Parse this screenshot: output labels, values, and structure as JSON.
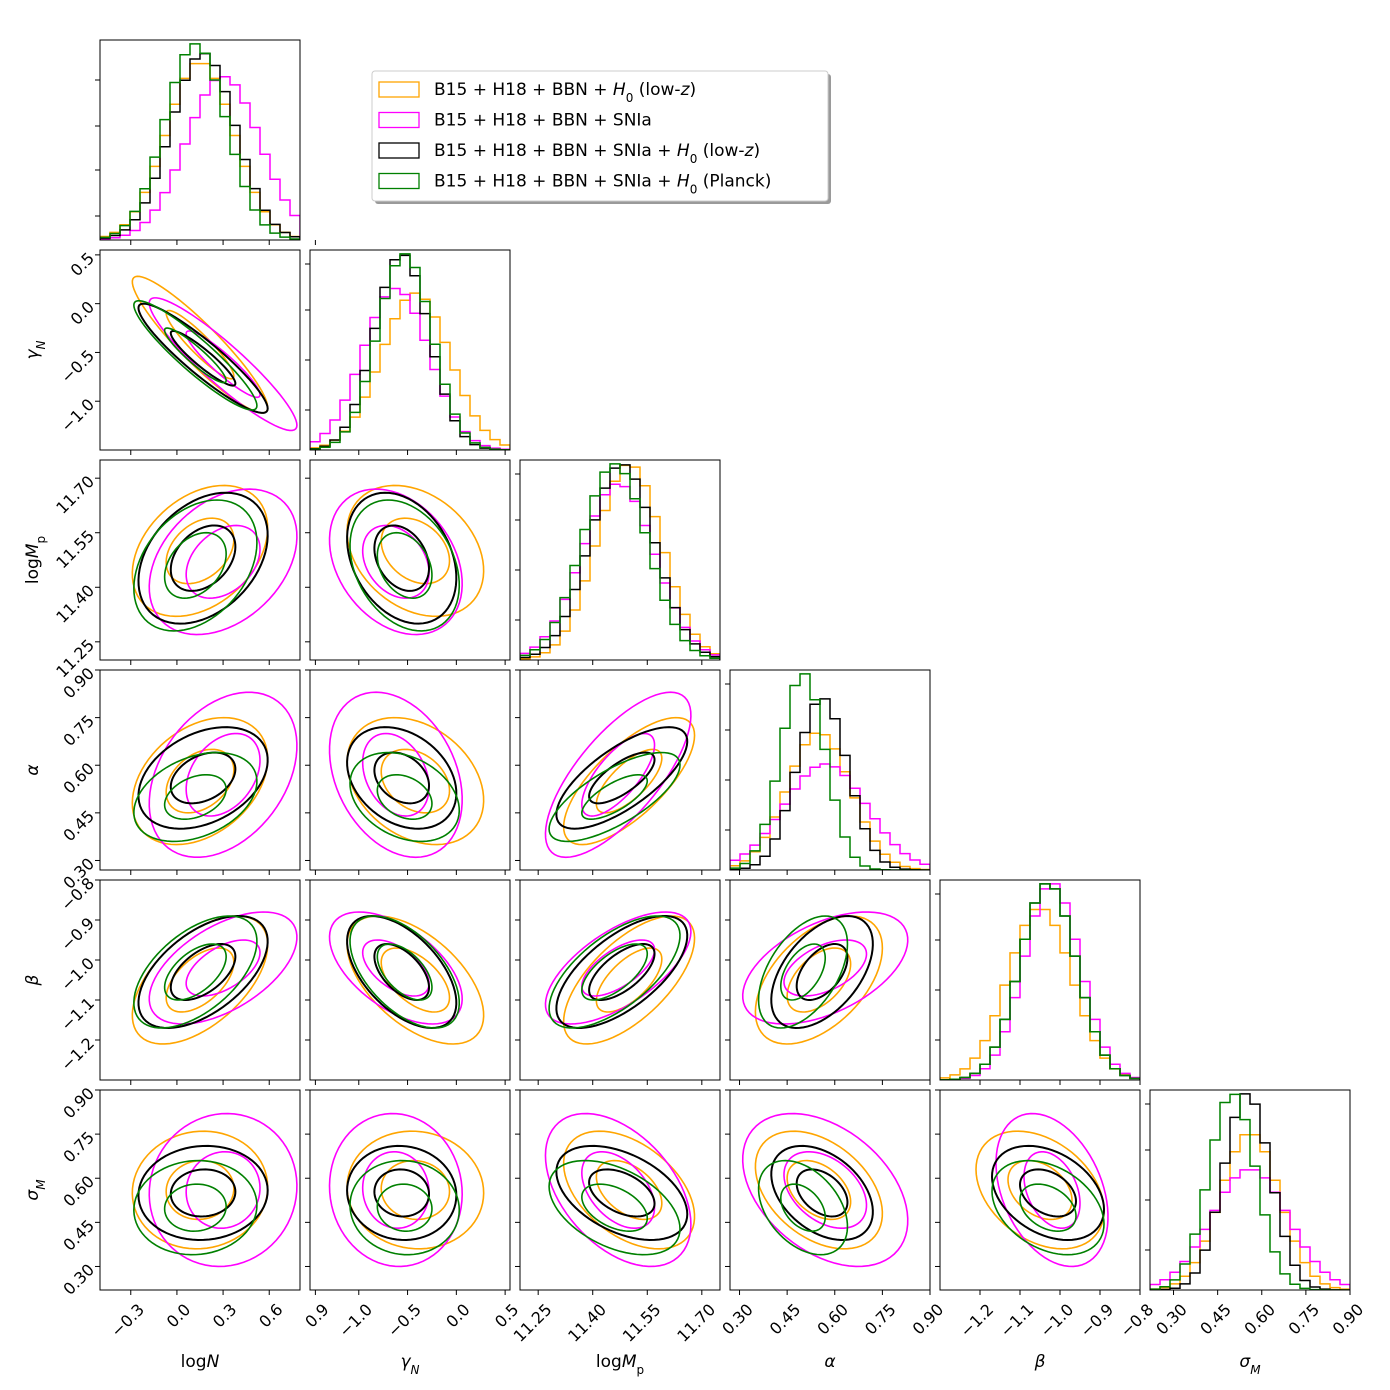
{
  "chart_data": {
    "type": "corner",
    "params": [
      {
        "key": "logN",
        "label_main": "log",
        "label_var": "N",
        "label_sub": "",
        "range": [
          -0.5,
          0.8
        ],
        "ticks": [
          -0.3,
          0.0,
          0.3,
          0.6,
          0.9
        ],
        "tick_labels": [
          "−0.3",
          "0.0",
          "0.3",
          "0.6",
          "0.9"
        ]
      },
      {
        "key": "gammaN",
        "label_main": "",
        "label_var": "γ",
        "label_sub": "N",
        "range": [
          -1.5,
          0.55
        ],
        "ticks": [
          -1.0,
          -0.5,
          0.0,
          0.5
        ],
        "tick_labels": [
          "−1.0",
          "−0.5",
          "0.0",
          "0.5"
        ]
      },
      {
        "key": "logMp",
        "label_main": "log",
        "label_var": "M",
        "label_sub": "p",
        "range": [
          11.2,
          11.75
        ],
        "ticks": [
          11.25,
          11.4,
          11.55,
          11.7
        ],
        "tick_labels": [
          "11.25",
          "11.40",
          "11.55",
          "11.70"
        ]
      },
      {
        "key": "alpha",
        "label_main": "",
        "label_var": "α",
        "label_sub": "",
        "range": [
          0.27,
          0.9
        ],
        "ticks": [
          0.3,
          0.45,
          0.6,
          0.75,
          0.9
        ],
        "tick_labels": [
          "0.30",
          "0.45",
          "0.60",
          "0.75",
          "0.90"
        ]
      },
      {
        "key": "beta",
        "label_main": "",
        "label_var": "β",
        "label_sub": "",
        "range": [
          -1.3,
          -0.8
        ],
        "ticks": [
          -1.2,
          -1.1,
          -1.0,
          -0.9,
          -0.8
        ],
        "tick_labels": [
          "−1.2",
          "−1.1",
          "−1.0",
          "−0.9",
          "−0.8"
        ]
      },
      {
        "key": "sigmaM",
        "label_main": "",
        "label_var": "σ",
        "label_sub": "M",
        "range": [
          0.22,
          0.9
        ],
        "ticks": [
          0.3,
          0.45,
          0.6,
          0.75,
          0.9
        ],
        "tick_labels": [
          "0.30",
          "0.45",
          "0.60",
          "0.75",
          "0.90"
        ]
      }
    ],
    "series": [
      {
        "name_pre": "B15 + H18 + BBN + ",
        "name_var": "H",
        "name_sub": "0",
        "name_post": " (low-",
        "name_z": "z",
        "name_end": ")",
        "color": "#FFA500",
        "mean": [
          0.15,
          -0.42,
          11.5,
          0.55,
          -1.05,
          0.56
        ],
        "sd": [
          0.22,
          0.35,
          0.09,
          0.1,
          0.08,
          0.1
        ]
      },
      {
        "name_pre": "B15 + H18 + BBN + SNIa",
        "name_var": "",
        "name_sub": "",
        "name_post": "",
        "name_z": "",
        "name_end": "",
        "color": "#FF00FF",
        "mean": [
          0.3,
          -0.62,
          11.47,
          0.57,
          -1.02,
          0.56
        ],
        "sd": [
          0.24,
          0.34,
          0.1,
          0.13,
          0.07,
          0.13
        ]
      },
      {
        "name_pre": "B15 + H18 + BBN + SNIa + ",
        "name_var": "H",
        "name_sub": "0",
        "name_post": " (low-",
        "name_z": "z",
        "name_end": ")",
        "color": "#000000",
        "mean": [
          0.17,
          -0.56,
          11.48,
          0.56,
          -1.03,
          0.55
        ],
        "sd": [
          0.21,
          0.28,
          0.09,
          0.08,
          0.07,
          0.08
        ]
      },
      {
        "name_pre": "B15 + H18 + BBN + SNIa + ",
        "name_var": "H",
        "name_sub": "0",
        "name_post": " (Planck)",
        "name_z": "",
        "name_end": "",
        "color": "#008000",
        "mean": [
          0.12,
          -0.53,
          11.46,
          0.5,
          -1.03,
          0.5
        ],
        "sd": [
          0.2,
          0.28,
          0.09,
          0.07,
          0.07,
          0.08
        ]
      }
    ],
    "correlation": [
      [
        1.0,
        -0.92,
        0.35,
        0.35,
        0.55,
        0.05
      ],
      [
        -0.92,
        1.0,
        -0.3,
        -0.3,
        -0.55,
        -0.05
      ],
      [
        0.35,
        -0.3,
        1.0,
        0.72,
        0.65,
        -0.45
      ],
      [
        0.35,
        -0.3,
        0.72,
        1.0,
        0.5,
        -0.4
      ],
      [
        0.55,
        -0.55,
        0.65,
        0.5,
        1.0,
        -0.35
      ],
      [
        0.05,
        -0.05,
        -0.45,
        -0.4,
        -0.35,
        1.0
      ]
    ],
    "contour_levels_sigma": [
      1.0,
      2.0
    ],
    "legend_position": "upper-right",
    "histogram_bins": 20
  }
}
